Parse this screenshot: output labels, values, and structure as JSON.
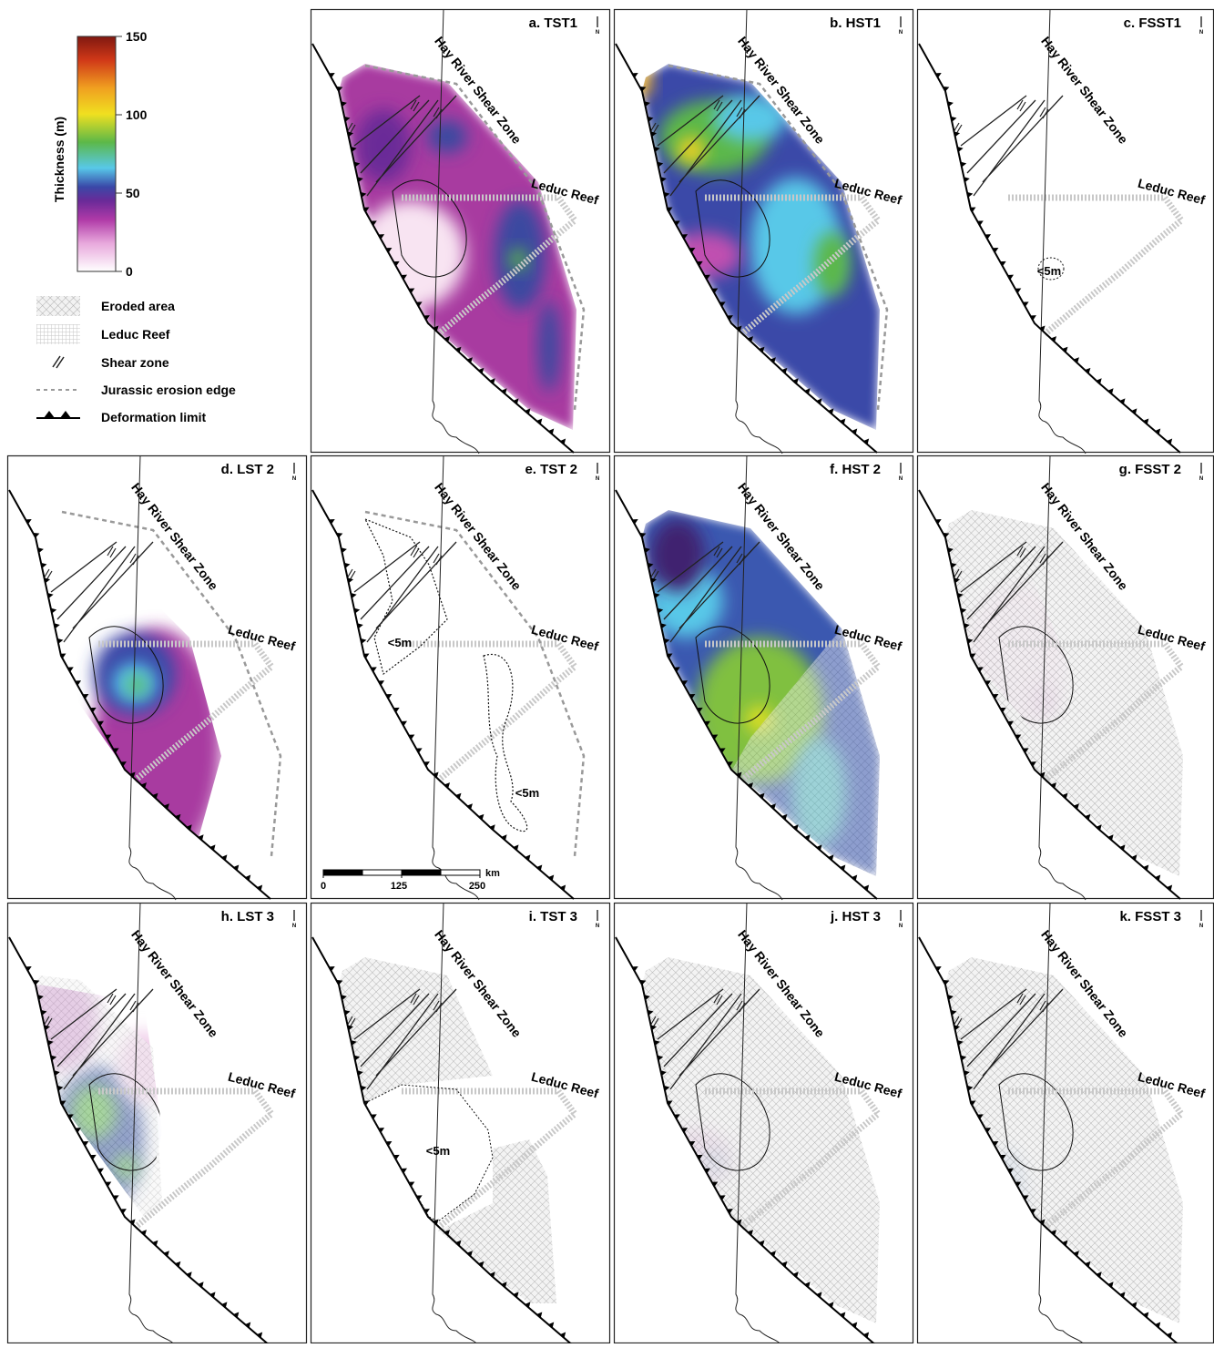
{
  "legend": {
    "colorbar": {
      "title": "Thickness (m)",
      "lim": [
        0,
        150
      ],
      "ticks": [
        0,
        50,
        100,
        150
      ]
    },
    "items": [
      {
        "label": "Eroded area"
      },
      {
        "label": "Leduc Reef"
      },
      {
        "label": "Shear zone"
      },
      {
        "label": "Jurassic erosion edge"
      },
      {
        "label": "Deformation limit"
      }
    ]
  },
  "panels": [
    {
      "title": "a. TST1",
      "north": "N",
      "zone_label": "Hay River Shear Zone",
      "reef_label": "Leduc Reef",
      "notes": []
    },
    {
      "title": "b. HST1",
      "north": "N",
      "zone_label": "Hay River Shear Zone",
      "reef_label": "Leduc Reef",
      "notes": []
    },
    {
      "title": "c. FSST1",
      "north": "N",
      "zone_label": "Hay River Shear Zone",
      "reef_label": "Leduc Reef",
      "notes": [
        "<5m"
      ]
    },
    {
      "title": "d. LST 2",
      "north": "N",
      "zone_label": "Hay River Shear Zone",
      "reef_label": "Leduc Reef",
      "notes": []
    },
    {
      "title": "e. TST 2",
      "north": "N",
      "zone_label": "Hay River Shear Zone",
      "reef_label": "Leduc Reef",
      "notes": [
        "<5m",
        "<5m"
      ]
    },
    {
      "title": "f. HST 2",
      "north": "N",
      "zone_label": "Hay River Shear Zone",
      "reef_label": "Leduc Reef",
      "notes": []
    },
    {
      "title": "g. FSST 2",
      "north": "N",
      "zone_label": "Hay River Shear Zone",
      "reef_label": "Leduc Reef",
      "notes": []
    },
    {
      "title": "h. LST 3",
      "north": "N",
      "zone_label": "Hay River Shear Zone",
      "reef_label": "Leduc Reef",
      "notes": []
    },
    {
      "title": "i. TST 3",
      "north": "N",
      "zone_label": "Hay River Shear Zone",
      "reef_label": "Leduc Reef",
      "notes": [
        "<5m"
      ]
    },
    {
      "title": "j. HST 3",
      "north": "N",
      "zone_label": "Hay River Shear Zone",
      "reef_label": "Leduc Reef",
      "notes": []
    },
    {
      "title": "k. FSST 3",
      "north": "N",
      "zone_label": "Hay River Shear Zone",
      "reef_label": "Leduc Reef",
      "notes": []
    }
  ],
  "scale_bar": {
    "ticks": [
      0,
      125,
      250
    ],
    "unit": "km"
  }
}
